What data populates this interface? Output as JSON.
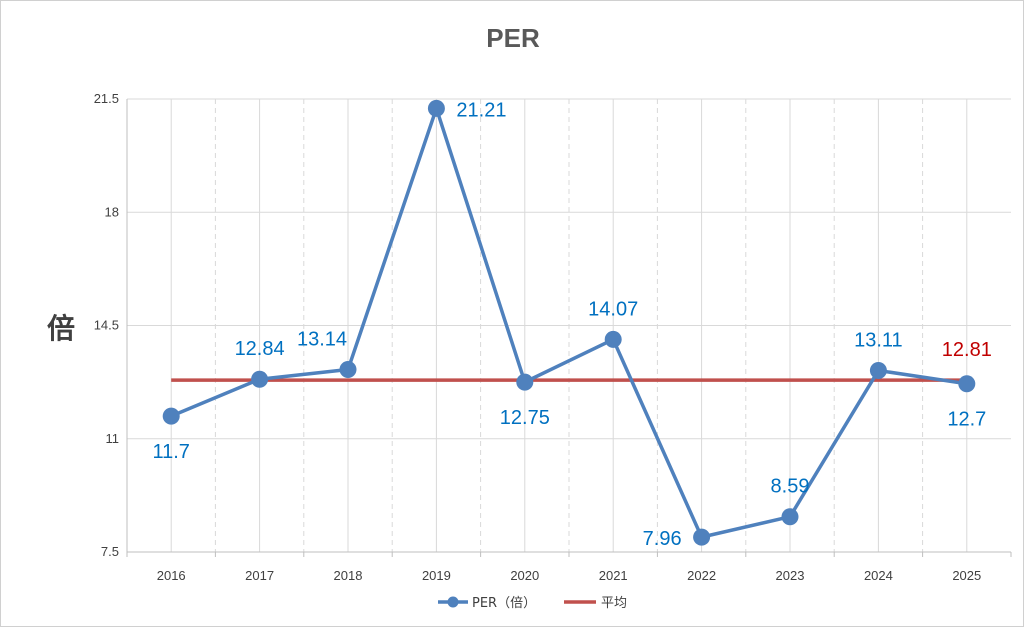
{
  "chart_data": {
    "type": "line",
    "title": "PER",
    "ylabel": "倍",
    "xlabel": "",
    "categories": [
      "2016",
      "2017",
      "2018",
      "2019",
      "2020",
      "2021",
      "2022",
      "2023",
      "2024",
      "2025"
    ],
    "yticks": [
      "7.5",
      "11",
      "14.5",
      "18",
      "21.5"
    ],
    "ylim": [
      7.5,
      21.5
    ],
    "grid": true,
    "legend": "bottom",
    "series": [
      {
        "name": "PER（倍）",
        "color": "#4f81bd",
        "values": [
          11.7,
          12.84,
          13.14,
          21.21,
          12.75,
          14.07,
          7.96,
          8.59,
          13.11,
          12.7
        ],
        "labels": [
          "11.7",
          "12.84",
          "13.14",
          "21.21",
          "12.75",
          "14.07",
          "7.96",
          "8.59",
          "13.11",
          "12.7"
        ]
      },
      {
        "name": "平均",
        "color": "#c0504d",
        "value": 12.81,
        "label": "12.81"
      }
    ]
  }
}
